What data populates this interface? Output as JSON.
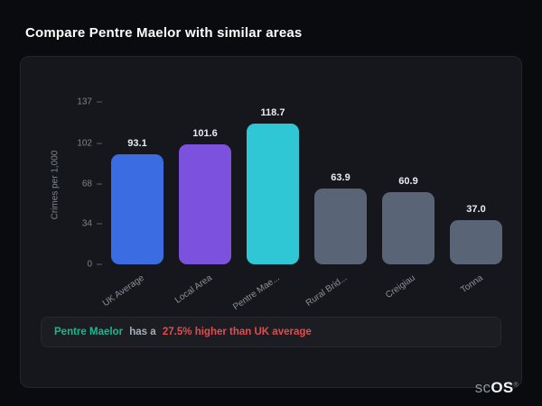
{
  "page": {
    "title": "Compare Pentre Maelor with similar areas"
  },
  "chart_data": {
    "type": "bar",
    "categories": [
      "UK Average",
      "Local Area",
      "Pentre Mae...",
      "Rural Brid...",
      "Creigiau",
      "Tonna"
    ],
    "values": [
      93.1,
      101.6,
      118.7,
      63.9,
      60.9,
      37.0
    ],
    "value_labels": [
      "93.1",
      "101.6",
      "118.7",
      "63.9",
      "60.9",
      "37.0"
    ],
    "bar_colors": [
      "#3b6ce2",
      "#7c51de",
      "#2fc6d5",
      "#596476",
      "#596476",
      "#596476"
    ],
    "title": "",
    "xlabel": "",
    "ylabel": "Crimes per 1,000",
    "yticks": [
      0,
      34,
      68,
      102,
      137
    ],
    "ylim": [
      0,
      137
    ],
    "grid": false,
    "legend": "none"
  },
  "annotation": {
    "area": "Pentre Maelor",
    "middle": "has a",
    "stat": "27.5% higher than UK average",
    "area_color": "#17b98e",
    "stat_color": "#e44b4c"
  },
  "logo": {
    "prefix": "sc",
    "suffix": "OS",
    "reg": "®"
  }
}
